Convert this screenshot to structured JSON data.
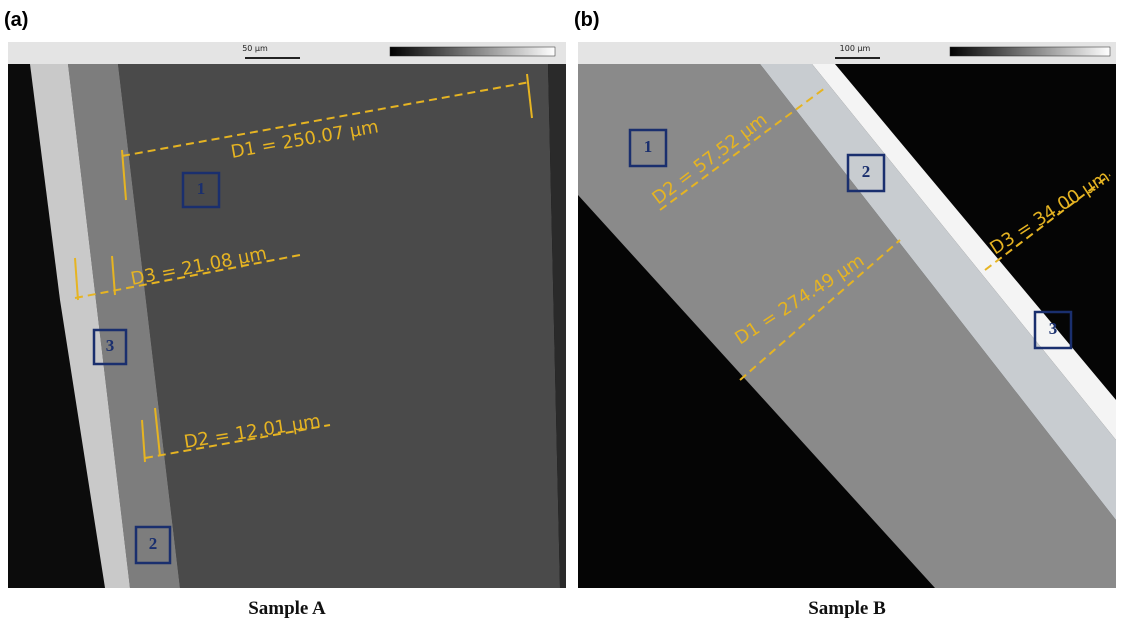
{
  "panels": [
    {
      "label": "(a)",
      "scale": "50 µm",
      "measurements": [
        "D1 = 250.07 µm",
        "D3 = 21.08 µm",
        "D2 = 12.01 µm"
      ],
      "regions": [
        "1",
        "3",
        "2"
      ],
      "caption": "Sample A"
    },
    {
      "label": "(b)",
      "scale": "100 µm",
      "measurements": [
        "D2 = 57.52 µm",
        "D3 = 34.00 µm",
        "D1 = 274.49 µm"
      ],
      "regions": [
        "1",
        "2",
        "3"
      ],
      "caption": "Sample B"
    }
  ]
}
